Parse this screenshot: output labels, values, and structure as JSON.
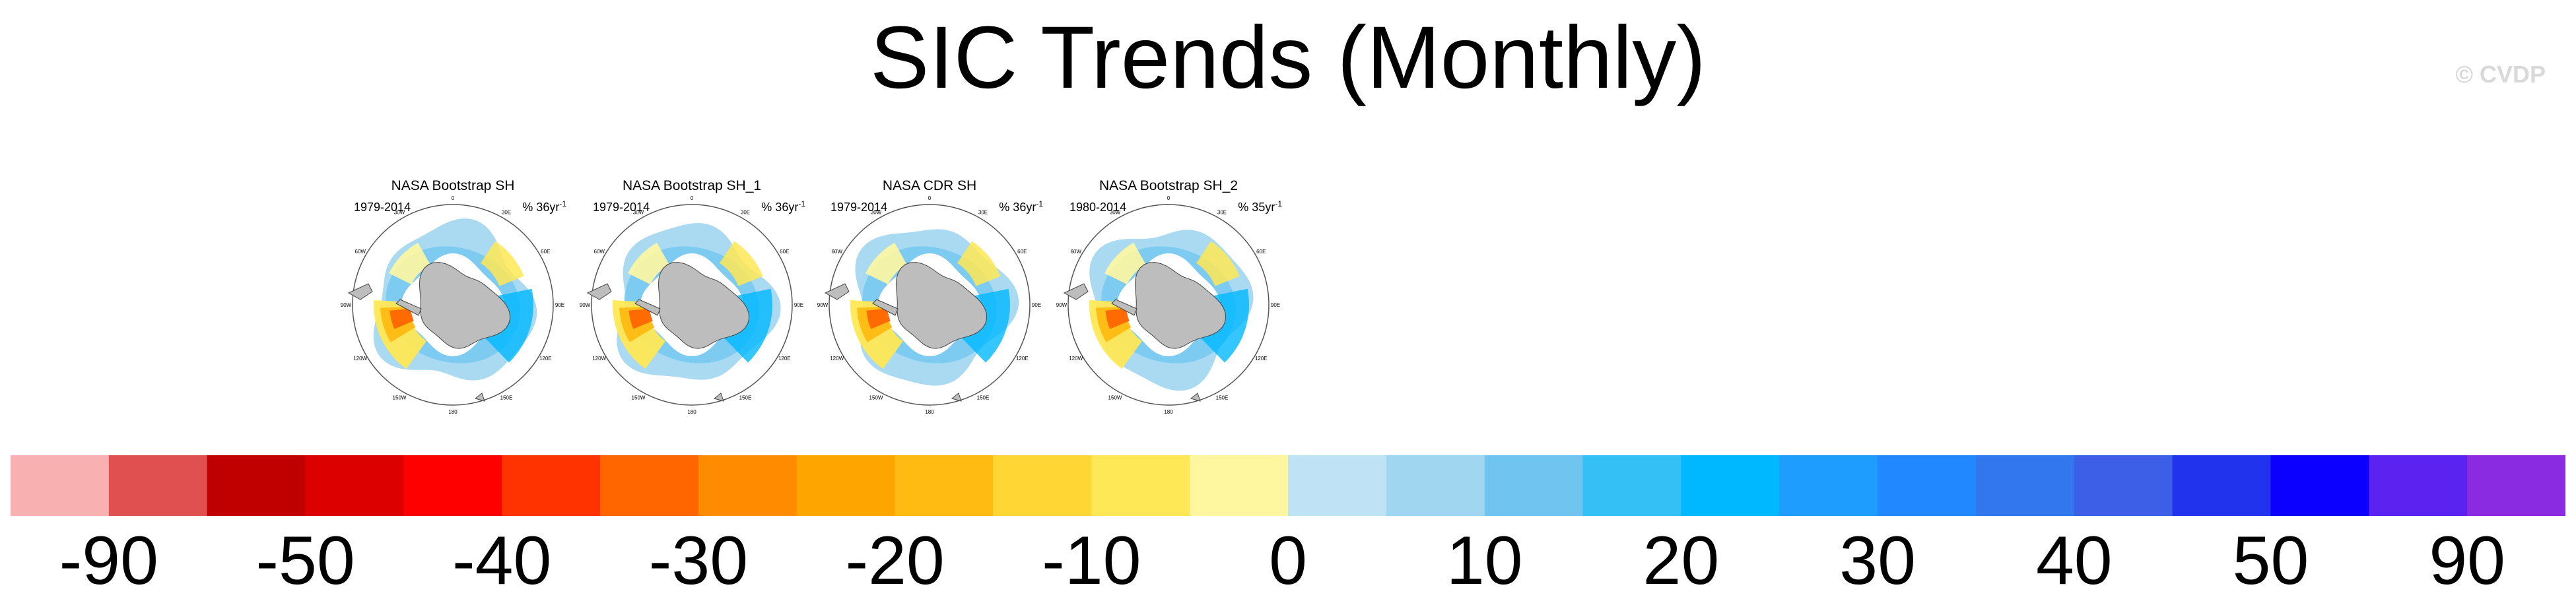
{
  "title": "SIC Trends (Monthly)",
  "copyright": "© CVDP",
  "panels": [
    {
      "title": "NASA Bootstrap SH",
      "period": "1979-2014",
      "units": "% 36yr",
      "exp": "-1"
    },
    {
      "title": "NASA Bootstrap SH_1",
      "period": "1979-2014",
      "units": "% 36yr",
      "exp": "-1"
    },
    {
      "title": "NASA CDR SH",
      "period": "1979-2014",
      "units": "% 36yr",
      "exp": "-1"
    },
    {
      "title": "NASA Bootstrap SH_2",
      "period": "1980-2014",
      "units": "% 35yr",
      "exp": "-1"
    }
  ],
  "map_labels": {
    "lon": [
      "0",
      "30E",
      "60E",
      "90E",
      "120E",
      "150E",
      "180",
      "150W",
      "120W",
      "90W",
      "60W",
      "30W"
    ]
  },
  "colors": {
    "land": "#bdbdbd",
    "ocean": "#ffffff",
    "outline": "#555555"
  },
  "colorbar": {
    "colors": [
      "#f9b0b0",
      "#e05050",
      "#c00000",
      "#dd0000",
      "#ff0000",
      "#ff3300",
      "#ff6600",
      "#ff8c00",
      "#ffa500",
      "#ffbb11",
      "#ffd633",
      "#ffe855",
      "#fff7a0",
      "#bfe2f5",
      "#a0d6f0",
      "#70c5f0",
      "#35c0f5",
      "#00b8ff",
      "#1e9dff",
      "#2288ff",
      "#3377ee",
      "#3d5ee6",
      "#2233ee",
      "#0b00ff",
      "#5b22f0",
      "#8a2be2"
    ],
    "labels": [
      "-90",
      "-50",
      "-40",
      "-30",
      "-20",
      "-10",
      "0",
      "10",
      "20",
      "30",
      "40",
      "50",
      "90"
    ]
  }
}
